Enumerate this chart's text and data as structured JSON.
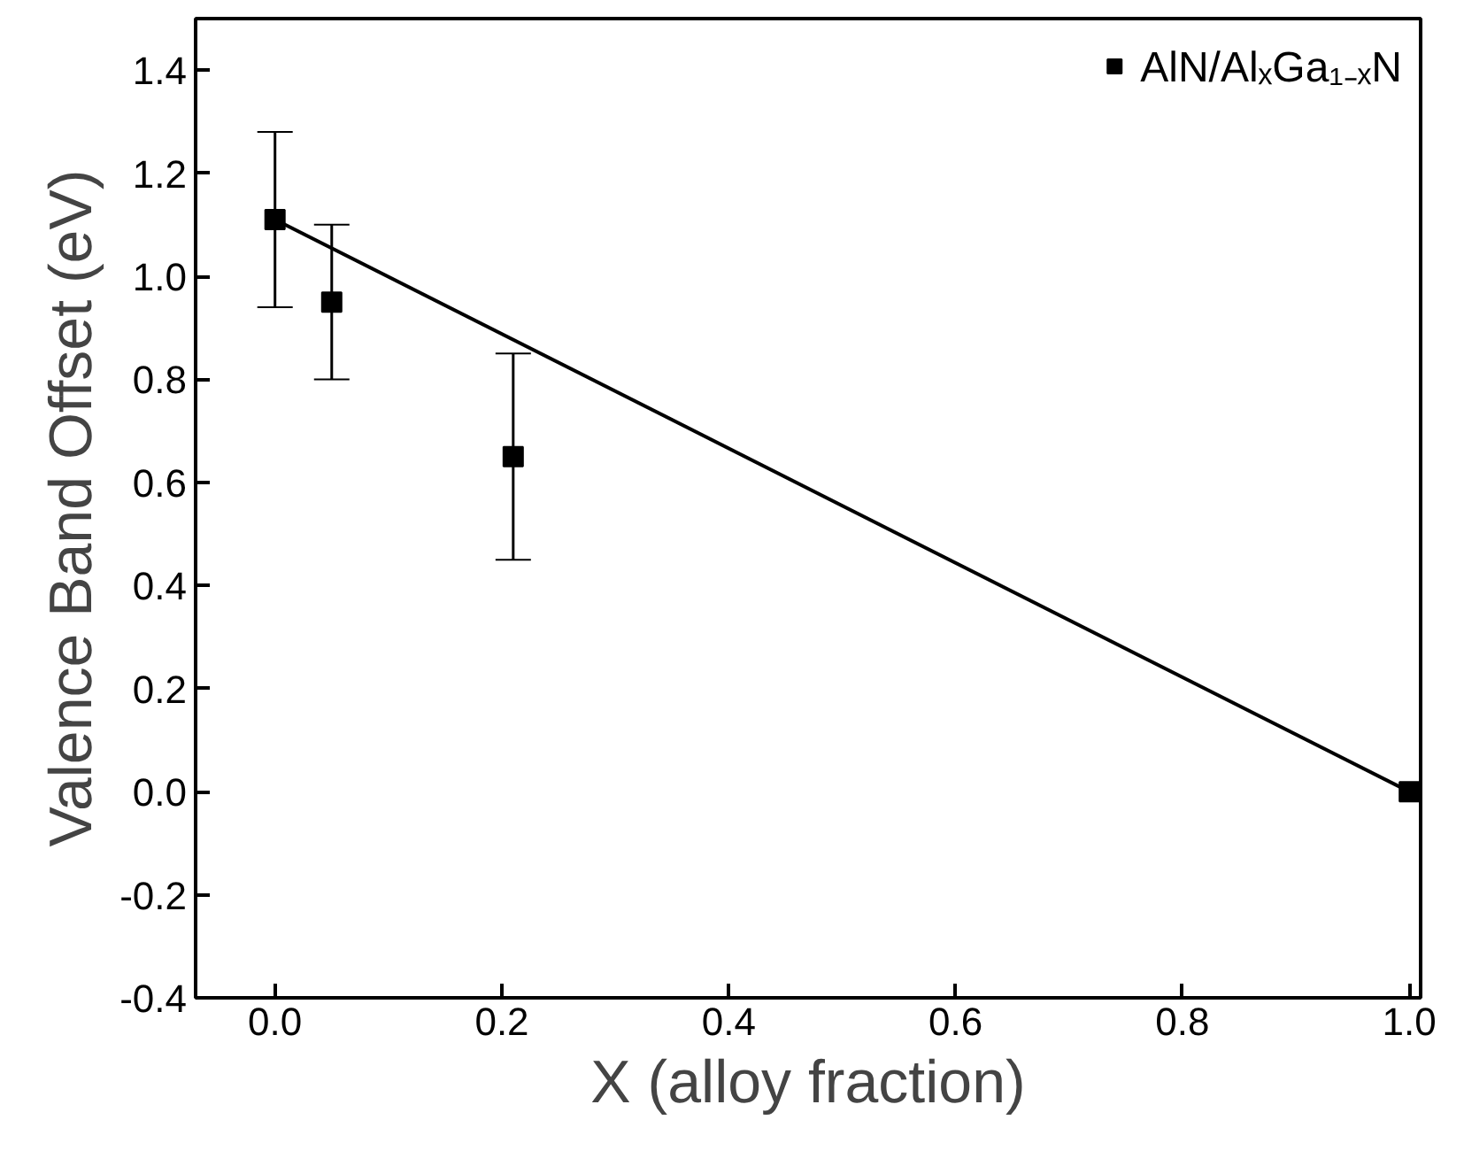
{
  "chart_data": {
    "type": "scatter",
    "xlabel": "X (alloy fraction)",
    "ylabel": "Valence Band Offset (eV)",
    "xlim": [
      -0.07,
      1.01
    ],
    "ylim": [
      -0.4,
      1.5
    ],
    "xticks": [
      {
        "value": 0,
        "label": "0.0"
      },
      0.2,
      0.4,
      0.6,
      0.8,
      {
        "value": 1,
        "label": "1.0"
      }
    ],
    "yticks": [
      -0.4,
      -0.2,
      {
        "value": 0,
        "label": "0.0"
      },
      0.2,
      0.4,
      0.6,
      0.8,
      {
        "value": 1,
        "label": "1.0"
      },
      1.2,
      1.4
    ],
    "grid": false,
    "legend": "top right",
    "series": [
      {
        "name": "AlN/AlₓGa₁₋ₓN",
        "marker": "square",
        "color": "#000000",
        "x": [
          0,
          0.05,
          0.21,
          1.0
        ],
        "values": [
          1.11,
          0.95,
          0.65,
          0.0
        ],
        "errors": [
          [
            0.94,
            1.28
          ],
          [
            0.8,
            1.1
          ],
          [
            0.45,
            0.85
          ],
          null
        ]
      },
      {
        "type": "line",
        "color": "#000000",
        "x": [
          0,
          1.0
        ],
        "values": [
          1.11,
          0.0
        ],
        "line_style": "solid"
      }
    ]
  }
}
